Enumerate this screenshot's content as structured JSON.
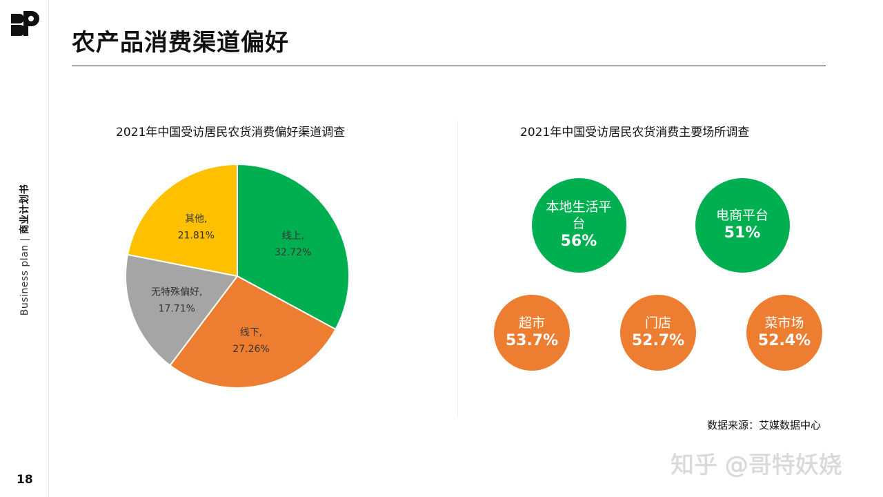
{
  "sidebar": {
    "vertical_text_en": "Business plan",
    "vertical_sep": "|",
    "vertical_text_cn": "商业计划书",
    "page_number": "18"
  },
  "header": {
    "title": "农产品消费渠道偏好"
  },
  "colors": {
    "green": "#00b050",
    "orange": "#ed7d31",
    "gray": "#a5a5a5",
    "yellow": "#ffc000"
  },
  "chart_data": [
    {
      "type": "pie",
      "title": "2021年中国受访居民农货消费偏好渠道调查",
      "slices": [
        {
          "name": "线上",
          "value": 32.72,
          "label": "32.72%",
          "color": "#00b050"
        },
        {
          "name": "线下",
          "value": 27.26,
          "label": "27.26%",
          "color": "#ed7d31"
        },
        {
          "name": "无特殊偏好",
          "value": 17.71,
          "label": "17.71%",
          "color": "#a5a5a5"
        },
        {
          "name": "其他",
          "value": 21.81,
          "label": "21.81%",
          "color": "#ffc000"
        }
      ]
    },
    {
      "type": "bubble",
      "title": "2021年中国受访居民农货消费主要场所调查",
      "items": [
        {
          "name": "本地生活平台",
          "value": 56,
          "label": "56%",
          "color": "#00b050"
        },
        {
          "name": "电商平台",
          "value": 51,
          "label": "51%",
          "color": "#00b050"
        },
        {
          "name": "超市",
          "value": 53.7,
          "label": "53.7%",
          "color": "#ed7d31"
        },
        {
          "name": "门店",
          "value": 52.7,
          "label": "52.7%",
          "color": "#ed7d31"
        },
        {
          "name": "菜市场",
          "value": 52.4,
          "label": "52.4%",
          "color": "#ed7d31"
        }
      ]
    }
  ],
  "footer": {
    "source": "数据来源：艾媒数据中心",
    "watermark": "知乎 @哥特妖娆"
  }
}
